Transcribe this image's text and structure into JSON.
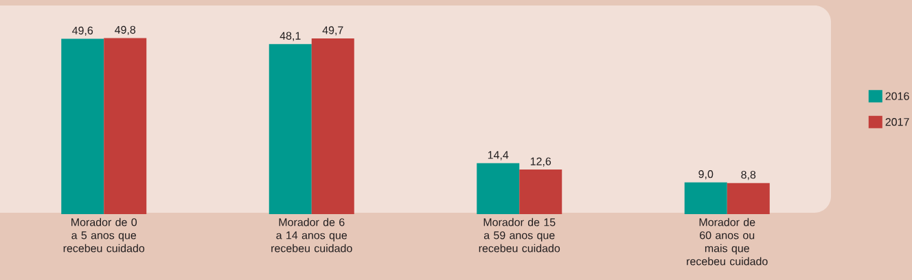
{
  "chart_data": {
    "type": "bar",
    "categories": [
      "Morador de 0 a 5 anos que recebeu cuidado",
      "Morador de 6 a 14 anos que recebeu cuidado",
      "Morador de 15 a 59 anos que recebeu cuidado",
      "Morador de 60 anos ou mais que recebeu cuidado"
    ],
    "series": [
      {
        "name": "2016",
        "color": "#009a8f",
        "values": [
          49.6,
          48.1,
          14.4,
          9.0
        ],
        "value_labels": [
          "49,6",
          "48,1",
          "14,4",
          "9,0"
        ]
      },
      {
        "name": "2017",
        "color": "#c23e3a",
        "values": [
          49.8,
          49.7,
          12.6,
          8.8
        ],
        "value_labels": [
          "49,8",
          "49,7",
          "12,6",
          "8,8"
        ]
      }
    ],
    "ylim": [
      0,
      59
    ],
    "legend": "right"
  }
}
